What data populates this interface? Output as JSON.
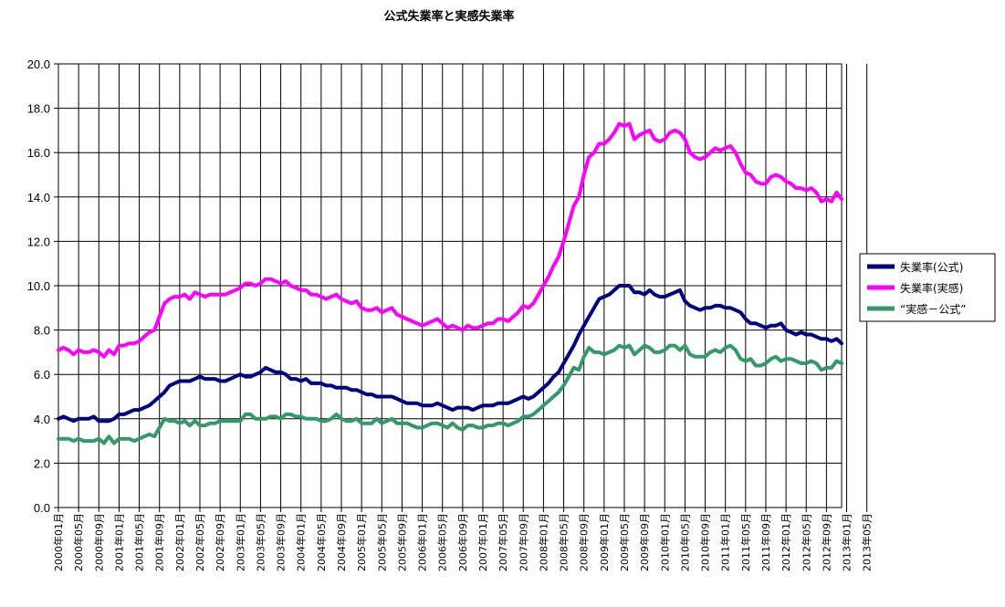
{
  "chart_data": {
    "type": "line",
    "title": "公式失業率と実感失業率",
    "xlabel": "",
    "ylabel": "",
    "ylim": [
      0,
      20
    ],
    "yticks": [
      "0.0",
      "2.0",
      "4.0",
      "6.0",
      "8.0",
      "10.0",
      "12.0",
      "14.0",
      "16.0",
      "18.0",
      "20.0"
    ],
    "grid": true,
    "legend_position": "right",
    "xtick_labels": [
      "2000年01月",
      "2000年05月",
      "2000年09月",
      "2001年01月",
      "2001年05月",
      "2001年09月",
      "2002年01月",
      "2002年05月",
      "2002年09月",
      "2003年01月",
      "2003年05月",
      "2003年09月",
      "2004年01月",
      "2004年05月",
      "2004年09月",
      "2005年01月",
      "2005年05月",
      "2005年09月",
      "2006年01月",
      "2006年05月",
      "2006年09月",
      "2007年01月",
      "2007年05月",
      "2007年09月",
      "2008年01月",
      "2008年05月",
      "2008年09月",
      "2009年01月",
      "2009年05月",
      "2009年09月",
      "2010年01月",
      "2010年05月",
      "2010年09月",
      "2011年01月",
      "2011年05月",
      "2011年09月",
      "2012年01月",
      "2012年05月",
      "2012年09月",
      "2013年01月",
      "2013年05月"
    ],
    "x_start": "2000年01月",
    "x_step_months": 1,
    "series": [
      {
        "name": "失業率(公式)",
        "color": "#000080",
        "values": [
          4.0,
          4.1,
          4.0,
          3.9,
          4.0,
          4.0,
          4.0,
          4.1,
          3.9,
          3.9,
          3.9,
          4.0,
          4.2,
          4.2,
          4.3,
          4.4,
          4.4,
          4.5,
          4.6,
          4.8,
          5.0,
          5.2,
          5.5,
          5.6,
          5.7,
          5.7,
          5.7,
          5.8,
          5.9,
          5.8,
          5.8,
          5.8,
          5.7,
          5.7,
          5.8,
          5.9,
          6.0,
          5.9,
          5.9,
          6.0,
          6.1,
          6.3,
          6.2,
          6.1,
          6.1,
          6.0,
          5.8,
          5.8,
          5.7,
          5.8,
          5.6,
          5.6,
          5.6,
          5.5,
          5.5,
          5.4,
          5.4,
          5.4,
          5.3,
          5.3,
          5.2,
          5.1,
          5.1,
          5.0,
          5.0,
          5.0,
          5.0,
          4.9,
          4.8,
          4.7,
          4.7,
          4.7,
          4.6,
          4.6,
          4.6,
          4.7,
          4.6,
          4.5,
          4.4,
          4.5,
          4.5,
          4.5,
          4.4,
          4.5,
          4.6,
          4.6,
          4.6,
          4.7,
          4.7,
          4.7,
          4.8,
          4.9,
          5.0,
          4.9,
          5.0,
          5.2,
          5.4,
          5.6,
          5.9,
          6.1,
          6.5,
          6.9,
          7.3,
          7.8,
          8.2,
          8.6,
          9.0,
          9.4,
          9.5,
          9.6,
          9.8,
          10.0,
          10.0,
          10.0,
          9.7,
          9.7,
          9.6,
          9.8,
          9.6,
          9.5,
          9.5,
          9.6,
          9.7,
          9.8,
          9.3,
          9.1,
          9.0,
          8.9,
          9.0,
          9.0,
          9.1,
          9.1,
          9.0,
          9.0,
          8.9,
          8.8,
          8.5,
          8.3,
          8.3,
          8.2,
          8.1,
          8.2,
          8.2,
          8.3,
          8.0,
          7.9,
          7.8,
          7.9,
          7.8,
          7.8,
          7.7,
          7.6,
          7.6,
          7.5,
          7.6,
          7.4
        ]
      },
      {
        "name": "失業率(実感)",
        "color": "#ff00ff",
        "values": [
          7.1,
          7.2,
          7.1,
          6.9,
          7.1,
          7.0,
          7.0,
          7.1,
          7.0,
          6.8,
          7.1,
          6.9,
          7.3,
          7.3,
          7.4,
          7.4,
          7.5,
          7.7,
          7.9,
          8.0,
          8.6,
          9.2,
          9.4,
          9.5,
          9.5,
          9.6,
          9.4,
          9.7,
          9.6,
          9.5,
          9.6,
          9.6,
          9.6,
          9.6,
          9.7,
          9.8,
          9.9,
          10.1,
          10.1,
          10.0,
          10.1,
          10.3,
          10.3,
          10.2,
          10.1,
          10.2,
          10.0,
          9.9,
          9.8,
          9.8,
          9.6,
          9.6,
          9.5,
          9.4,
          9.5,
          9.6,
          9.4,
          9.3,
          9.2,
          9.3,
          9.0,
          8.9,
          8.9,
          9.0,
          8.8,
          8.9,
          9.0,
          8.7,
          8.6,
          8.5,
          8.4,
          8.3,
          8.2,
          8.3,
          8.4,
          8.5,
          8.3,
          8.1,
          8.2,
          8.1,
          8.0,
          8.2,
          8.1,
          8.1,
          8.2,
          8.3,
          8.3,
          8.5,
          8.5,
          8.4,
          8.6,
          8.8,
          9.1,
          9.0,
          9.2,
          9.6,
          10.0,
          10.4,
          10.9,
          11.3,
          12.0,
          12.8,
          13.6,
          14.0,
          15.0,
          15.8,
          16.0,
          16.4,
          16.4,
          16.6,
          16.9,
          17.3,
          17.2,
          17.3,
          16.6,
          16.8,
          16.9,
          17.0,
          16.6,
          16.5,
          16.6,
          16.9,
          17.0,
          16.9,
          16.6,
          16.0,
          15.8,
          15.7,
          15.8,
          16.0,
          16.2,
          16.1,
          16.2,
          16.3,
          16.0,
          15.5,
          15.1,
          15.0,
          14.7,
          14.6,
          14.6,
          14.9,
          15.0,
          14.9,
          14.7,
          14.6,
          14.4,
          14.4,
          14.3,
          14.4,
          14.2,
          13.8,
          13.9,
          13.8,
          14.2,
          13.9
        ]
      },
      {
        "name": "“実感－公式”",
        "color": "#339966",
        "values": [
          3.1,
          3.1,
          3.1,
          3.0,
          3.1,
          3.0,
          3.0,
          3.0,
          3.1,
          2.9,
          3.2,
          2.9,
          3.1,
          3.1,
          3.1,
          3.0,
          3.1,
          3.2,
          3.3,
          3.2,
          3.6,
          4.0,
          3.9,
          3.9,
          3.8,
          3.9,
          3.7,
          3.9,
          3.7,
          3.7,
          3.8,
          3.8,
          3.9,
          3.9,
          3.9,
          3.9,
          3.9,
          4.2,
          4.2,
          4.0,
          4.0,
          4.0,
          4.1,
          4.1,
          4.0,
          4.2,
          4.2,
          4.1,
          4.1,
          4.0,
          4.0,
          4.0,
          3.9,
          3.9,
          4.0,
          4.2,
          4.0,
          3.9,
          3.9,
          4.0,
          3.8,
          3.8,
          3.8,
          4.0,
          3.8,
          3.9,
          4.0,
          3.8,
          3.8,
          3.8,
          3.7,
          3.6,
          3.6,
          3.7,
          3.8,
          3.8,
          3.7,
          3.6,
          3.8,
          3.6,
          3.5,
          3.7,
          3.7,
          3.6,
          3.6,
          3.7,
          3.7,
          3.8,
          3.8,
          3.7,
          3.8,
          3.9,
          4.1,
          4.1,
          4.2,
          4.4,
          4.6,
          4.8,
          5.0,
          5.2,
          5.5,
          5.9,
          6.3,
          6.2,
          6.8,
          7.2,
          7.0,
          7.0,
          6.9,
          7.0,
          7.1,
          7.3,
          7.2,
          7.3,
          6.9,
          7.1,
          7.3,
          7.2,
          7.0,
          7.0,
          7.1,
          7.3,
          7.3,
          7.1,
          7.3,
          6.9,
          6.8,
          6.8,
          6.8,
          7.0,
          7.1,
          7.0,
          7.2,
          7.3,
          7.1,
          6.7,
          6.6,
          6.7,
          6.4,
          6.4,
          6.5,
          6.7,
          6.8,
          6.6,
          6.7,
          6.7,
          6.6,
          6.5,
          6.5,
          6.6,
          6.5,
          6.2,
          6.3,
          6.3,
          6.6,
          6.5
        ]
      }
    ]
  }
}
